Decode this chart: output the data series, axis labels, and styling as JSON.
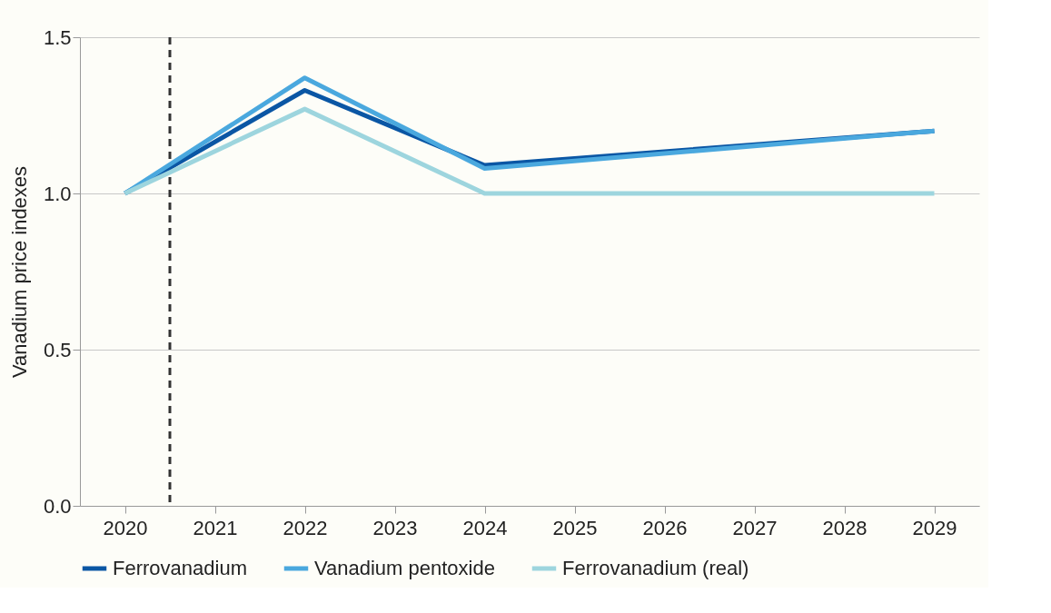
{
  "chart_data": {
    "type": "line",
    "ylabel": "Vanadium price indexes",
    "xlim": [
      2019.5,
      2029.5
    ],
    "xticks": [
      2020,
      2021,
      2022,
      2023,
      2024,
      2025,
      2026,
      2027,
      2028,
      2029
    ],
    "ylim": [
      0,
      1.5
    ],
    "yticks": [
      {
        "value": 0,
        "label": "0.0"
      },
      {
        "value": 0.5,
        "label": "0.5"
      },
      {
        "value": 1,
        "label": "1.0"
      },
      {
        "value": 1.5,
        "label": "1.5"
      }
    ],
    "series": [
      {
        "name": "Ferrovanadium",
        "color": "#0a56a4",
        "x": [
          2020,
          2022,
          2024,
          2029
        ],
        "values": [
          1.0,
          1.33,
          1.09,
          1.2
        ]
      },
      {
        "name": "Vanadium pentoxide",
        "color": "#4aa8de",
        "x": [
          2020,
          2022,
          2024,
          2029
        ],
        "values": [
          1.0,
          1.37,
          1.08,
          1.2
        ]
      },
      {
        "name": "Ferrovanadium (real)",
        "color": "#9dd5de",
        "x": [
          2020,
          2022,
          2024,
          2029
        ],
        "values": [
          1.0,
          1.27,
          1.0,
          1.0
        ]
      }
    ],
    "ref_lines": [
      {
        "axis": "x",
        "value": 2020.5,
        "label": null,
        "color": "#333333",
        "line_style": "dashed"
      }
    ],
    "grid": "y",
    "legend": "bottom",
    "marker": "none",
    "line_style": "solid"
  }
}
